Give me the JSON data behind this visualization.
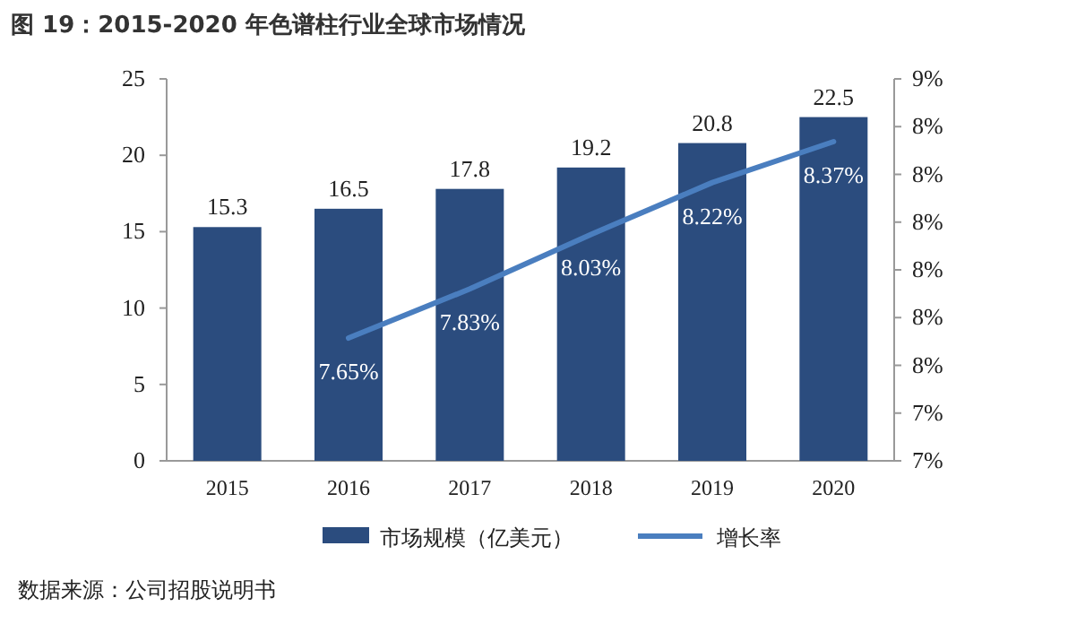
{
  "chart_data": {
    "type": "bar",
    "title": "图 19：2015-2020 年色谱柱行业全球市场情况",
    "categories": [
      "2015",
      "2016",
      "2017",
      "2018",
      "2019",
      "2020"
    ],
    "series": [
      {
        "name": "市场规模（亿美元）",
        "color": "#2b4c7e",
        "values": [
          15.3,
          16.5,
          17.8,
          19.2,
          20.8,
          22.5
        ],
        "value_labels": [
          "15.3",
          "16.5",
          "17.8",
          "19.2",
          "20.8",
          "22.5"
        ]
      },
      {
        "name": "增长率",
        "type": "line",
        "axis": "y2",
        "color": "#4a7ebf",
        "values": [
          null,
          7.65,
          7.83,
          8.03,
          8.22,
          8.37
        ],
        "value_labels": [
          null,
          "7.65%",
          "7.83%",
          "8.03%",
          "8.22%",
          "8.37%"
        ]
      }
    ],
    "ylim": [
      0,
      25
    ],
    "yticks": [
      0,
      5,
      10,
      15,
      20,
      25
    ],
    "y2lim": [
      7.2,
      8.6
    ],
    "y2ticks": [
      {
        "value": 7.2,
        "label": "7%"
      },
      {
        "value": 7.375,
        "label": "7%"
      },
      {
        "value": 7.55,
        "label": "8%"
      },
      {
        "value": 7.725,
        "label": "8%"
      },
      {
        "value": 7.9,
        "label": "8%"
      },
      {
        "value": 8.075,
        "label": "8%"
      },
      {
        "value": 8.25,
        "label": "8%"
      },
      {
        "value": 8.425,
        "label": "8%"
      },
      {
        "value": 8.6,
        "label": "9%"
      }
    ],
    "legend": "bottom",
    "annotations": [
      "数据来源：公司招股说明书"
    ]
  }
}
